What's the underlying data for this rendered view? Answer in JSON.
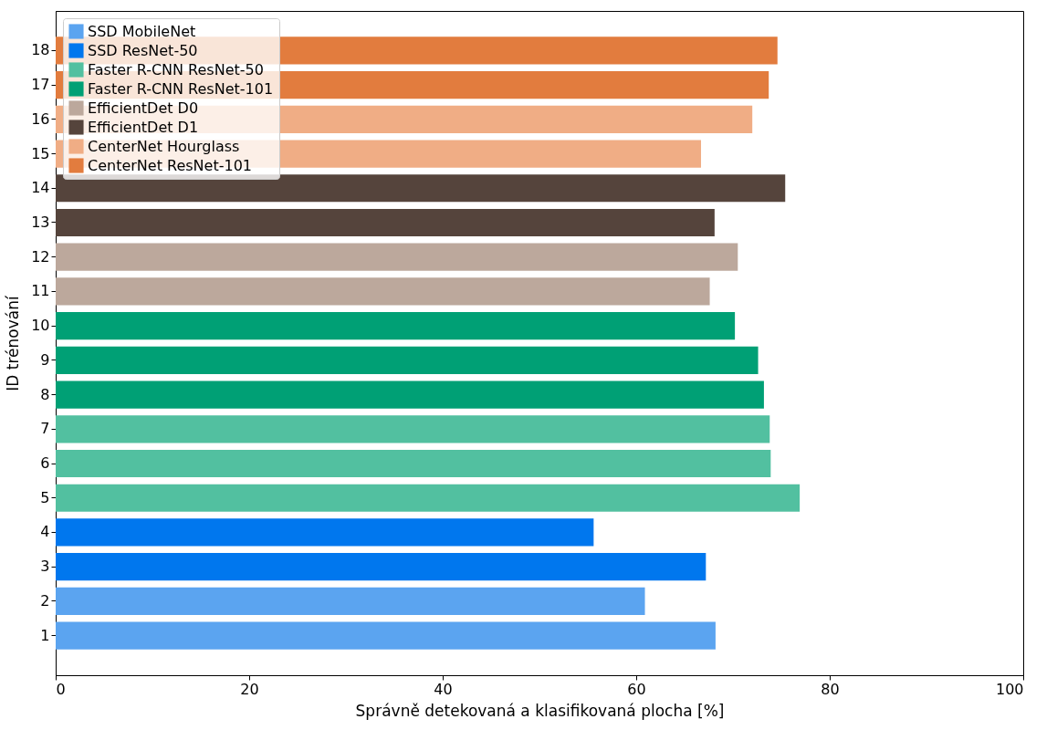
{
  "chart_data": {
    "type": "bar",
    "orientation": "horizontal",
    "xlabel": "Správně detekovaná a klasifikovaná plocha [%]",
    "ylabel": "ID trénování",
    "categories": [
      "18",
      "17",
      "16",
      "15",
      "14",
      "13",
      "12",
      "11",
      "10",
      "9",
      "8",
      "7",
      "6",
      "5",
      "4",
      "3",
      "2",
      "1"
    ],
    "series": [
      {
        "name": "SSD MobileNet",
        "color": "#5ba4f0",
        "values": [
          null,
          null,
          null,
          null,
          null,
          null,
          null,
          null,
          null,
          null,
          null,
          null,
          null,
          null,
          null,
          null,
          60.9,
          68.2
        ]
      },
      {
        "name": "SSD ResNet-50",
        "color": "#0077ee",
        "values": [
          null,
          null,
          null,
          null,
          null,
          null,
          null,
          null,
          null,
          null,
          null,
          null,
          null,
          null,
          55.6,
          67.2,
          null,
          null
        ]
      },
      {
        "name": "Faster R-CNN ResNet-50",
        "color": "#52c0a0",
        "values": [
          null,
          null,
          null,
          null,
          null,
          null,
          null,
          null,
          null,
          null,
          null,
          73.8,
          73.9,
          76.9,
          null,
          null,
          null,
          null
        ]
      },
      {
        "name": "Faster R-CNN ResNet-101",
        "color": "#00a075",
        "values": [
          null,
          null,
          null,
          null,
          null,
          null,
          null,
          null,
          70.2,
          72.6,
          73.2,
          null,
          null,
          null,
          null,
          null,
          null,
          null
        ]
      },
      {
        "name": "EfficientDet D0",
        "color": "#bca89c",
        "values": [
          null,
          null,
          null,
          null,
          null,
          null,
          70.5,
          67.6,
          null,
          null,
          null,
          null,
          null,
          null,
          null,
          null,
          null,
          null
        ]
      },
      {
        "name": "EfficientDet D1",
        "color": "#55443c",
        "values": [
          null,
          null,
          null,
          null,
          75.4,
          68.1,
          null,
          null,
          null,
          null,
          null,
          null,
          null,
          null,
          null,
          null,
          null,
          null
        ]
      },
      {
        "name": "CenterNet Hourglass",
        "color": "#f0ad85",
        "values": [
          null,
          null,
          72.0,
          66.7,
          null,
          null,
          null,
          null,
          null,
          null,
          null,
          null,
          null,
          null,
          null,
          null,
          null,
          null
        ]
      },
      {
        "name": "CenterNet ResNet-101",
        "color": "#e27c3e",
        "values": [
          74.6,
          73.7,
          null,
          null,
          null,
          null,
          null,
          null,
          null,
          null,
          null,
          null,
          null,
          null,
          null,
          null,
          null,
          null
        ]
      }
    ],
    "xlim": [
      0,
      100
    ],
    "xticks": [
      0,
      20,
      40,
      60,
      80,
      100
    ],
    "grid": false,
    "legend": "top left"
  }
}
